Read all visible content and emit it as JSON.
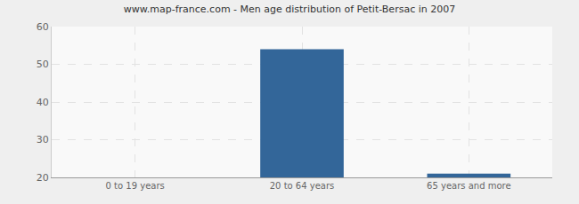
{
  "chart_data": {
    "type": "bar",
    "title": "www.map-france.com - Men age distribution of Petit-Bersac in 2007",
    "categories": [
      "0 to 19 years",
      "20 to 64 years",
      "65 years and more"
    ],
    "values": [
      20,
      54,
      21
    ],
    "color": "#336699",
    "ylim": [
      20,
      60
    ],
    "yticks": [
      20,
      30,
      40,
      50,
      60
    ],
    "grid": true
  }
}
